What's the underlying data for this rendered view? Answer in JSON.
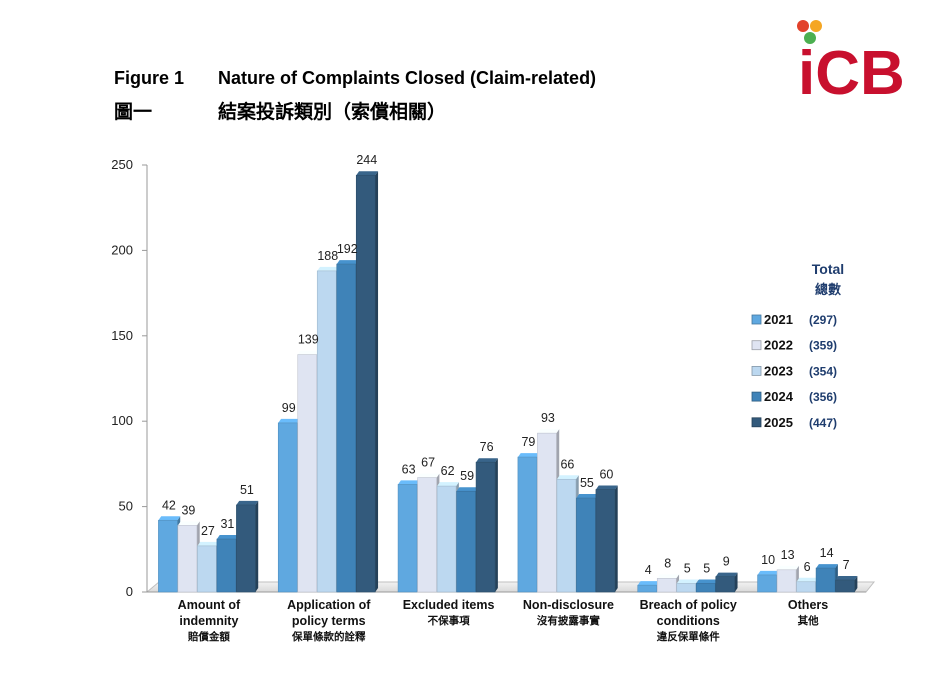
{
  "header": {
    "figure_en": "Figure 1",
    "title_en": "Nature of Complaints Closed (Claim-related)",
    "figure_zh": "圖一",
    "title_zh": "結案投訴類別（索償相關）"
  },
  "logo": {
    "text": "iCB",
    "dot_colors": [
      "#e2412b",
      "#f5a623",
      "#4caf50"
    ],
    "text_color": "#c8102e"
  },
  "chart_data": {
    "type": "bar",
    "ylim": [
      0,
      250
    ],
    "yticks": [
      0,
      50,
      100,
      150,
      200,
      250
    ],
    "categories": [
      {
        "en": [
          "Amount of",
          "indemnity"
        ],
        "zh": "賠償金額"
      },
      {
        "en": [
          "Application of",
          "policy terms"
        ],
        "zh": "保單條款的詮釋"
      },
      {
        "en": [
          "Excluded items"
        ],
        "zh": "不保事項"
      },
      {
        "en": [
          "Non-disclosure"
        ],
        "zh": "沒有披露事實"
      },
      {
        "en": [
          "Breach of policy",
          "conditions"
        ],
        "zh": "違反保單條件"
      },
      {
        "en": [
          "Others"
        ],
        "zh": "其他"
      }
    ],
    "series": [
      {
        "name": "2021",
        "total": "(297)",
        "color": "#5fa8e0",
        "values": [
          42,
          99,
          63,
          79,
          4,
          10
        ]
      },
      {
        "name": "2022",
        "total": "(359)",
        "color": "#dfe4f2",
        "values": [
          39,
          139,
          67,
          93,
          8,
          13
        ]
      },
      {
        "name": "2023",
        "total": "(354)",
        "color": "#bcd8f0",
        "values": [
          27,
          188,
          62,
          66,
          5,
          6
        ]
      },
      {
        "name": "2024",
        "total": "(356)",
        "color": "#3f83b8",
        "values": [
          31,
          192,
          59,
          55,
          5,
          14
        ]
      },
      {
        "name": "2025",
        "total": "(447)",
        "color": "#335a7c",
        "values": [
          51,
          244,
          76,
          60,
          9,
          7
        ]
      }
    ],
    "legend": {
      "title": "Total",
      "title_zh": "總數",
      "placement": "right"
    }
  }
}
